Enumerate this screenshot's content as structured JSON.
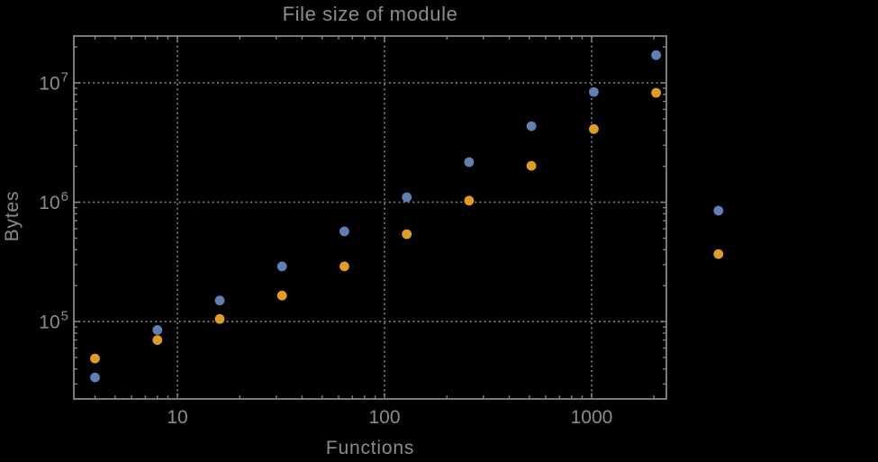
{
  "chart_data": {
    "type": "scatter",
    "title": "File size of module",
    "xlabel": "Functions",
    "ylabel": "Bytes",
    "x_scale": "log",
    "y_scale": "log",
    "xlim": [
      3.16,
      2296
    ],
    "ylim": [
      22450,
      24700000
    ],
    "grid": "dotted gray gridlines at powers of 10, both axes",
    "legend": "none",
    "x_tick_values": [
      10,
      100,
      1000
    ],
    "x_tick_labels": [
      "10",
      "100",
      "1000"
    ],
    "y_tick_values": [
      100000,
      1000000,
      10000000
    ],
    "y_tick_base": "10",
    "y_tick_exponents": [
      "5",
      "6",
      "7"
    ],
    "x": [
      4,
      8,
      16,
      32,
      64,
      128,
      256,
      512,
      1024,
      2048,
      4096
    ],
    "series": [
      {
        "name": "blue",
        "color": "#5E81B5",
        "values": [
          34000,
          85000,
          150000,
          290000,
          570000,
          1100000,
          2170000,
          4340000,
          8400000,
          17100000,
          850000
        ]
      },
      {
        "name": "orange",
        "color": "#E19C24",
        "values": [
          49000,
          70000,
          105000,
          165000,
          290000,
          540000,
          1030000,
          2020000,
          4100000,
          8260000,
          368000
        ]
      }
    ],
    "marker_diameter_px": 10.8,
    "note_outside_frame": "points at x=4096 are drawn beyond the right frame edge"
  },
  "colors": {
    "background": "#000000",
    "frame": "#878787",
    "tick": "#878787",
    "gridline": "#7d7d7d",
    "text": "#8c8c8c"
  }
}
